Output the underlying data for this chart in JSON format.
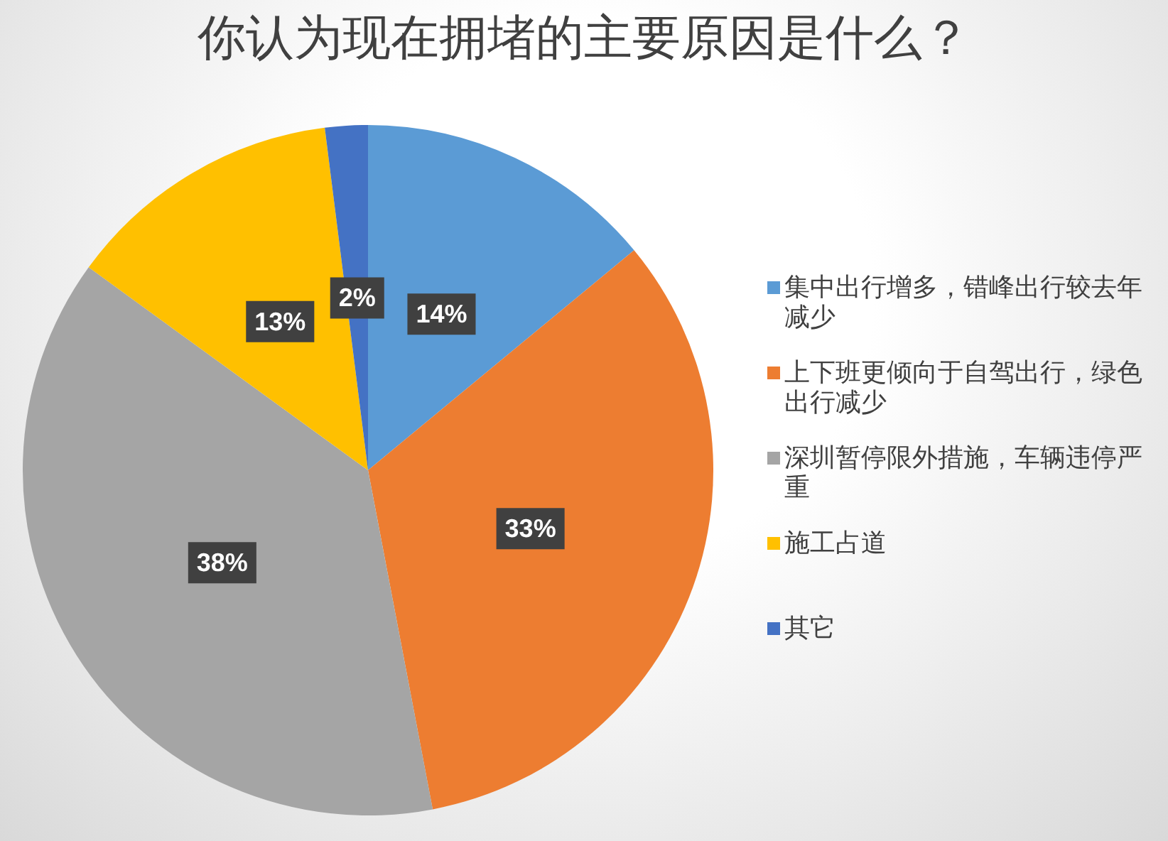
{
  "chart_data": {
    "type": "pie",
    "title": "你认为现在拥堵的主要原因是什么？",
    "categories": [
      "集中出行增多，错峰出行较去年减少",
      "上下班更倾向于自驾出行，绿色出行减少",
      "深圳暂停限外措施，车辆违停严重",
      "施工占道",
      "其它"
    ],
    "values": [
      14,
      33,
      38,
      13,
      2
    ],
    "colors": [
      "#5b9bd5",
      "#ed7d31",
      "#a5a5a5",
      "#ffc000",
      "#4472c4"
    ],
    "value_labels": [
      "14%",
      "33%",
      "38%",
      "13%",
      "2%"
    ],
    "legend": "right"
  }
}
